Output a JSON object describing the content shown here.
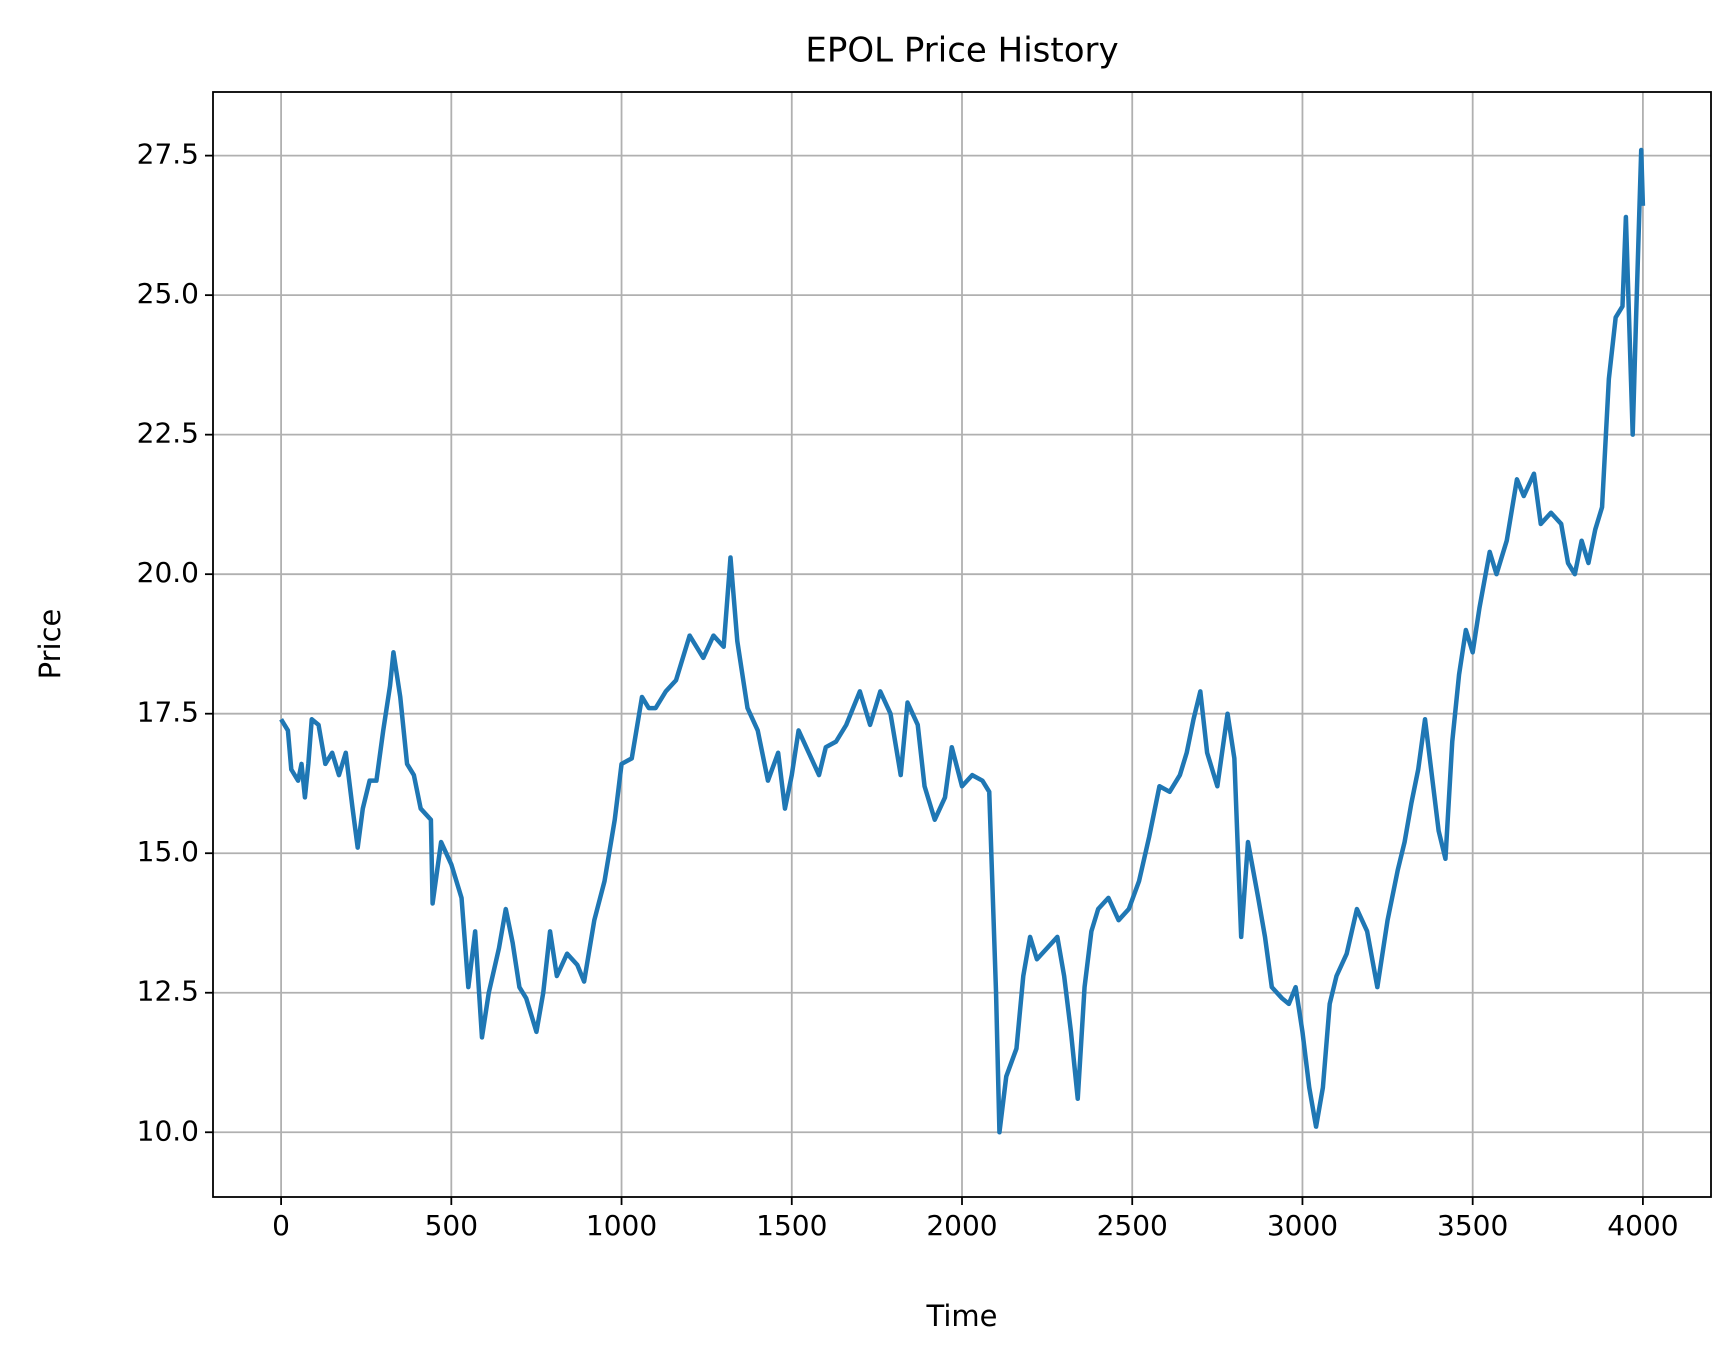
{
  "chart_data": {
    "type": "line",
    "title": "EPOL Price History",
    "x_label": "Time",
    "y_label": "Price",
    "x": [
      0,
      20,
      30,
      50,
      60,
      70,
      80,
      90,
      110,
      130,
      150,
      170,
      190,
      210,
      225,
      240,
      260,
      280,
      300,
      320,
      330,
      350,
      370,
      390,
      410,
      440,
      445,
      470,
      500,
      530,
      550,
      570,
      590,
      610,
      640,
      660,
      680,
      700,
      720,
      750,
      770,
      790,
      810,
      840,
      870,
      890,
      920,
      950,
      980,
      1000,
      1030,
      1060,
      1080,
      1100,
      1130,
      1160,
      1200,
      1240,
      1270,
      1300,
      1320,
      1340,
      1370,
      1400,
      1430,
      1460,
      1480,
      1500,
      1520,
      1550,
      1580,
      1600,
      1630,
      1660,
      1680,
      1700,
      1730,
      1760,
      1790,
      1820,
      1840,
      1870,
      1890,
      1920,
      1950,
      1970,
      2000,
      2030,
      2060,
      2080,
      2100,
      2110,
      2130,
      2160,
      2180,
      2200,
      2220,
      2250,
      2280,
      2300,
      2320,
      2340,
      2360,
      2380,
      2400,
      2430,
      2460,
      2490,
      2520,
      2550,
      2580,
      2610,
      2640,
      2660,
      2680,
      2700,
      2720,
      2750,
      2780,
      2800,
      2820,
      2840,
      2870,
      2890,
      2910,
      2940,
      2960,
      2980,
      3000,
      3020,
      3040,
      3060,
      3080,
      3100,
      3130,
      3160,
      3190,
      3220,
      3250,
      3280,
      3300,
      3320,
      3340,
      3360,
      3380,
      3400,
      3420,
      3440,
      3460,
      3480,
      3500,
      3520,
      3550,
      3570,
      3600,
      3630,
      3650,
      3680,
      3700,
      3730,
      3760,
      3780,
      3800,
      3820,
      3840,
      3860,
      3880,
      3900,
      3920,
      3940,
      3950,
      3970,
      3980,
      3990,
      3995,
      4000
    ],
    "series": [
      {
        "name": "EPOL",
        "color": "#1f77b4",
        "values": [
          17.4,
          17.2,
          16.5,
          16.3,
          16.6,
          16.0,
          16.6,
          17.4,
          17.3,
          16.6,
          16.8,
          16.4,
          16.8,
          15.8,
          15.1,
          15.8,
          16.3,
          16.3,
          17.2,
          18.0,
          18.6,
          17.8,
          16.6,
          16.4,
          15.8,
          15.6,
          14.1,
          15.2,
          14.8,
          14.2,
          12.6,
          13.6,
          11.7,
          12.5,
          13.3,
          14.0,
          13.4,
          12.6,
          12.4,
          11.8,
          12.5,
          13.6,
          12.8,
          13.2,
          13.0,
          12.7,
          13.8,
          14.5,
          15.6,
          16.6,
          16.7,
          17.8,
          17.6,
          17.6,
          17.9,
          18.1,
          18.9,
          18.5,
          18.9,
          18.7,
          20.3,
          18.8,
          17.6,
          17.2,
          16.3,
          16.8,
          15.8,
          16.4,
          17.2,
          16.8,
          16.4,
          16.9,
          17.0,
          17.3,
          17.6,
          17.9,
          17.3,
          17.9,
          17.5,
          16.4,
          17.7,
          17.3,
          16.2,
          15.6,
          16.0,
          16.9,
          16.2,
          16.4,
          16.3,
          16.1,
          12.5,
          10.0,
          11.0,
          11.5,
          12.8,
          13.5,
          13.1,
          13.3,
          13.5,
          12.8,
          11.8,
          10.6,
          12.6,
          13.6,
          14.0,
          14.2,
          13.8,
          14.0,
          14.5,
          15.3,
          16.2,
          16.1,
          16.4,
          16.8,
          17.4,
          17.9,
          16.8,
          16.2,
          17.5,
          16.7,
          13.5,
          15.2,
          14.2,
          13.5,
          12.6,
          12.4,
          12.3,
          12.6,
          11.8,
          10.8,
          10.1,
          10.8,
          12.3,
          12.8,
          13.2,
          14.0,
          13.6,
          12.6,
          13.8,
          14.7,
          15.2,
          15.9,
          16.5,
          17.4,
          16.4,
          15.4,
          14.9,
          17.0,
          18.2,
          19.0,
          18.6,
          19.4,
          20.4,
          20.0,
          20.6,
          21.7,
          21.4,
          21.8,
          20.9,
          21.1,
          20.9,
          20.2,
          20.0,
          20.6,
          20.2,
          20.8,
          21.2,
          23.5,
          24.6,
          24.8,
          26.4,
          22.5,
          24.6,
          26.6,
          27.6,
          26.6
        ]
      }
    ],
    "xlim": [
      -200,
      4200
    ],
    "ylim": [
      8.84,
      28.64
    ],
    "xticks": [
      0,
      500,
      1000,
      1500,
      2000,
      2500,
      3000,
      3500,
      4000
    ],
    "yticks": [
      {
        "value": 10,
        "label": "10.0"
      },
      {
        "value": 12.5,
        "label": "12.5"
      },
      {
        "value": 15,
        "label": "15.0"
      },
      {
        "value": 17.5,
        "label": "17.5"
      },
      {
        "value": 20,
        "label": "20.0"
      },
      {
        "value": 22.5,
        "label": "22.5"
      },
      {
        "value": 25,
        "label": "25.0"
      },
      {
        "value": 27.5,
        "label": "27.5"
      }
    ],
    "grid": true
  }
}
